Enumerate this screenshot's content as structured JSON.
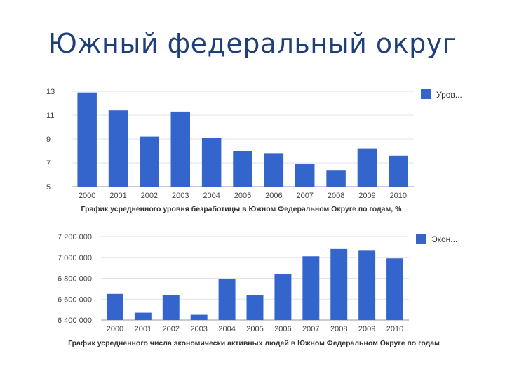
{
  "title": "Южный федеральный округ",
  "accent": "#3465cc",
  "chart_data": [
    {
      "type": "bar",
      "categories": [
        "2000",
        "2001",
        "2002",
        "2003",
        "2004",
        "2005",
        "2006",
        "2007",
        "2008",
        "2009",
        "2010"
      ],
      "series": [
        {
          "name": "Уров...",
          "values": [
            12.9,
            11.4,
            9.2,
            11.3,
            9.1,
            8.0,
            7.8,
            6.9,
            6.4,
            8.2,
            7.6
          ]
        }
      ],
      "ylim": [
        5,
        13
      ],
      "ytick_labels": [
        "13",
        "11",
        "9",
        "7",
        "5"
      ],
      "legend": "top-right",
      "caption": "График усредненного уровня безработицы в Южном Федеральном Округе по годам, %"
    },
    {
      "type": "bar",
      "categories": [
        "2000",
        "2001",
        "2002",
        "2003",
        "2004",
        "2005",
        "2006",
        "2007",
        "2008",
        "2009",
        "2010"
      ],
      "series": [
        {
          "name": "Экон...",
          "values": [
            6650000,
            6470000,
            6640000,
            6450000,
            6790000,
            6640000,
            6840000,
            7010000,
            7080000,
            7070000,
            6990000
          ]
        }
      ],
      "ylim": [
        6400000,
        7200000
      ],
      "ytick_labels": [
        "7 200 000",
        "7 000 000",
        "6 800 000",
        "6 600 000",
        "6 400 000"
      ],
      "legend": "top-right",
      "caption": "График усредненного числа экономически активных людей в Южном Федеральном Округе по годам"
    }
  ]
}
